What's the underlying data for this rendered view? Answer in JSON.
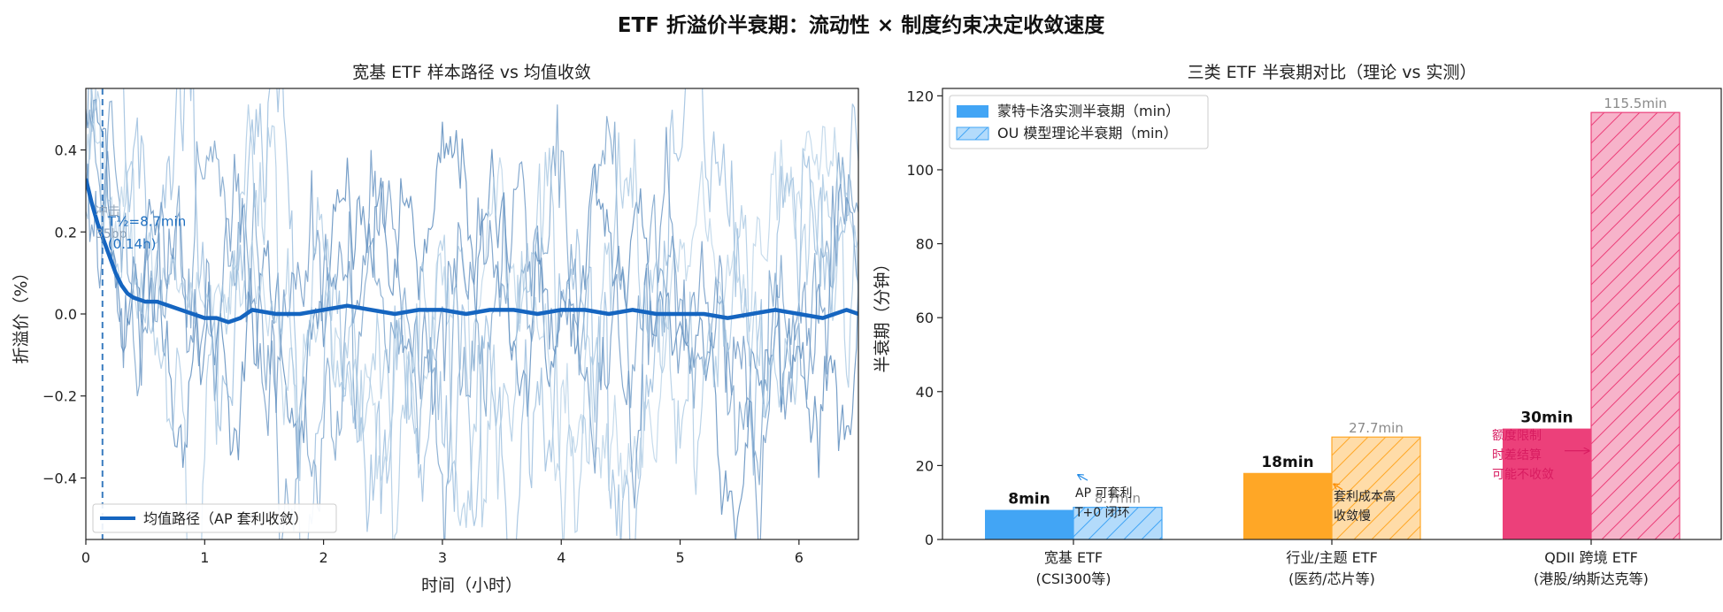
{
  "figure": {
    "suptitle": "ETF 折溢价半衰期：流动性 × 制度约束决定收敛速度"
  },
  "chart_data": [
    {
      "type": "line",
      "title": "宽基 ETF 样本路径 vs 均值收敛",
      "xlabel": "时间（小时）",
      "ylabel": "折溢价（%）",
      "xlim": [
        0,
        6.5
      ],
      "ylim": [
        -0.55,
        0.55
      ],
      "xticks": [
        0,
        1,
        2,
        3,
        4,
        5,
        6
      ],
      "xtick_labels": [
        "0",
        "1",
        "2",
        "3",
        "4",
        "5",
        "6"
      ],
      "yticks": [
        -0.4,
        -0.2,
        0.0,
        0.2,
        0.4
      ],
      "ytick_labels": [
        "−0.4",
        "−0.2",
        "0.0",
        "0.2",
        "0.4"
      ],
      "grid": false,
      "legend": {
        "placement": "lower-left",
        "entries": [
          "均值路径（AP 套利收敛）"
        ]
      },
      "mean_series": {
        "name": "均值路径（AP 套利收敛）",
        "color": "#1565c0",
        "x": [
          0,
          0.05,
          0.1,
          0.15,
          0.2,
          0.25,
          0.3,
          0.35,
          0.4,
          0.5,
          0.6,
          0.7,
          0.8,
          0.9,
          1.0,
          1.1,
          1.2,
          1.3,
          1.4,
          1.6,
          1.8,
          2.0,
          2.2,
          2.4,
          2.6,
          2.8,
          3.0,
          3.2,
          3.4,
          3.6,
          3.8,
          4.0,
          4.2,
          4.4,
          4.6,
          4.8,
          5.0,
          5.2,
          5.4,
          5.6,
          5.8,
          6.0,
          6.2,
          6.4,
          6.5
        ],
        "y": [
          0.33,
          0.27,
          0.22,
          0.18,
          0.14,
          0.1,
          0.07,
          0.05,
          0.04,
          0.03,
          0.03,
          0.02,
          0.01,
          0.0,
          -0.01,
          -0.01,
          -0.02,
          -0.01,
          0.01,
          0.0,
          0.0,
          0.01,
          0.02,
          0.01,
          0.0,
          0.01,
          0.01,
          0.0,
          0.01,
          0.01,
          0.0,
          0.01,
          0.01,
          0.0,
          0.01,
          0.0,
          0.0,
          0.0,
          -0.01,
          0.0,
          0.01,
          0.0,
          -0.01,
          0.01,
          0.0
        ]
      },
      "sample_paths": {
        "count": 6,
        "colors": [
          "#4a7fb5",
          "#6c9ac6",
          "#8fb6d9",
          "#b3cfe6",
          "#5f8ebf",
          "#a3c4e0"
        ],
        "start": [
          0.5,
          0.45,
          0.4,
          0.35,
          0.3,
          0.25
        ]
      },
      "half_life_marker": {
        "x": 0.14,
        "label_lines": [
          "T½=8.7min",
          "(0.14h)"
        ],
        "overlap_label_lines": [
          "冲击",
          "35bp"
        ]
      }
    },
    {
      "type": "bar",
      "title": "三类 ETF 半衰期对比（理论 vs 实测）",
      "xlabel": "",
      "ylabel": "半衰期（分钟）",
      "ylim": [
        0,
        122
      ],
      "yticks": [
        0,
        20,
        40,
        60,
        80,
        100,
        120
      ],
      "grid": false,
      "legend": {
        "placement": "top-left"
      },
      "categories": [
        [
          "宽基 ETF",
          "(CSI300等)"
        ],
        [
          "行业/主题 ETF",
          "(医药/芯片等)"
        ],
        [
          "QDII 跨境 ETF",
          "(港股/纳斯达克等)"
        ]
      ],
      "series": [
        {
          "name": "蒙特卡洛实测半衰期（min）",
          "values": [
            8,
            18,
            30
          ],
          "value_labels": [
            "8min",
            "18min",
            "30min"
          ],
          "colors": [
            "#42a5f5",
            "#ffa726",
            "#ec407a"
          ]
        },
        {
          "name": "OU 模型理论半衰期（min）",
          "values": [
            8.7,
            27.7,
            115.5
          ],
          "value_labels": [
            "8.7min",
            "27.7min",
            "115.5min"
          ],
          "colors": [
            "#42a5f5",
            "#ffa726",
            "#ec407a"
          ],
          "hatched": true
        }
      ],
      "annotations": [
        {
          "lines": [
            "AP 可套利",
            "T+0 闭环"
          ],
          "color": "#1e88e5"
        },
        {
          "lines": [
            "套利成本高",
            "收敛慢"
          ],
          "color": "#fb8c00"
        },
        {
          "lines": [
            "额度限制",
            "时差结算",
            "可能不收敛"
          ],
          "color": "#d81b60"
        }
      ]
    }
  ]
}
